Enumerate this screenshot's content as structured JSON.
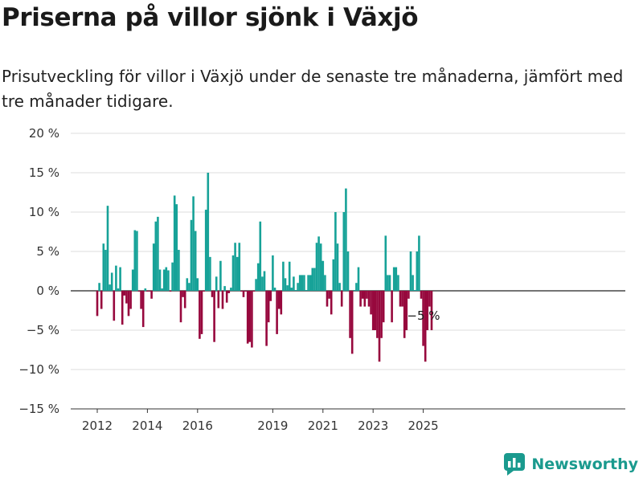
{
  "header": {
    "title": "Priserna på villor sjönk i Växjö",
    "subtitle": "Prisutveckling för villor i Växjö under de senaste tre månaderna, jämfört med tre månader tidigare."
  },
  "brand": {
    "name": "Newsworthy"
  },
  "colors": {
    "positive": "#17a298",
    "negative": "#97083d",
    "grid": "#dddddd",
    "zero": "#222222"
  },
  "chart_data": {
    "type": "bar",
    "yformat": "percent",
    "ylim": [
      -15,
      20
    ],
    "yticks": [
      -15,
      -10,
      -5,
      0,
      5,
      10,
      15,
      20
    ],
    "ytick_labels": [
      "−15 %",
      "−10 %",
      "−5 %",
      "0 %",
      "5 %",
      "10 %",
      "15 %",
      "20 %"
    ],
    "xticks": [
      {
        "label": "2012",
        "date": "2012-01"
      },
      {
        "label": "2014",
        "date": "2014-01"
      },
      {
        "label": "2016",
        "date": "2016-01"
      },
      {
        "label": "2019",
        "date": "2019-01"
      },
      {
        "label": "2021",
        "date": "2021-01"
      },
      {
        "label": "2023",
        "date": "2023-01"
      },
      {
        "label": "2025",
        "date": "2025-01"
      }
    ],
    "x_start": "2012-01",
    "annotation": {
      "text": "−5 %",
      "date": "2024-12"
    },
    "values": [
      -3.2,
      1.0,
      -2.3,
      6.0,
      5.2,
      10.8,
      0.8,
      2.3,
      -3.8,
      3.2,
      0.3,
      3.0,
      -4.3,
      -0.6,
      -1.6,
      -3.2,
      -2.3,
      2.7,
      7.7,
      7.6,
      -0.1,
      -2.3,
      -4.6,
      0.3,
      -0.1,
      -0.1,
      -1.0,
      6.0,
      8.8,
      9.4,
      2.7,
      0.3,
      2.7,
      3.0,
      2.6,
      -0.1,
      3.6,
      12.1,
      11.0,
      5.2,
      -4.0,
      -0.8,
      -2.2,
      1.6,
      1.0,
      9.0,
      12.0,
      7.6,
      1.6,
      -6.1,
      -5.5,
      -0.1,
      10.3,
      15.0,
      4.3,
      -0.8,
      -6.5,
      1.8,
      -2.2,
      3.8,
      -2.3,
      0.6,
      -1.5,
      -0.3,
      0.4,
      4.5,
      6.1,
      4.3,
      6.1,
      -0.1,
      -0.8,
      -0.1,
      -6.7,
      -6.5,
      -7.2,
      -0.1,
      1.5,
      3.5,
      8.8,
      1.8,
      2.5,
      -7.0,
      -4.0,
      -1.3,
      4.5,
      0.4,
      -5.5,
      -2.3,
      -3.0,
      3.7,
      1.6,
      0.7,
      3.7,
      0.4,
      1.8,
      0.1,
      1.0,
      2.0,
      2.0,
      2.0,
      0.1,
      2.0,
      2.0,
      2.9,
      2.9,
      6.1,
      6.9,
      6.0,
      3.8,
      2.0,
      -2.0,
      -1.0,
      -3.0,
      4.0,
      10.0,
      6.0,
      1.0,
      -2.0,
      10.0,
      13.0,
      5.0,
      -6.0,
      -8.0,
      0.1,
      1.0,
      3.0,
      -2.0,
      -1.0,
      -2.0,
      -1.0,
      -2.0,
      -3.0,
      -5.0,
      -5.0,
      -6.0,
      -9.0,
      -6.0,
      -4.0,
      7.0,
      2.0,
      2.0,
      -4.0,
      3.0,
      3.0,
      2.0,
      -2.0,
      -2.0,
      -6.0,
      -5.0,
      -1.0,
      5.0,
      2.0,
      0.1,
      5.0,
      7.0,
      -1.0,
      -7.0,
      -9.0,
      -5.0,
      -2.0,
      -5.0
    ]
  }
}
